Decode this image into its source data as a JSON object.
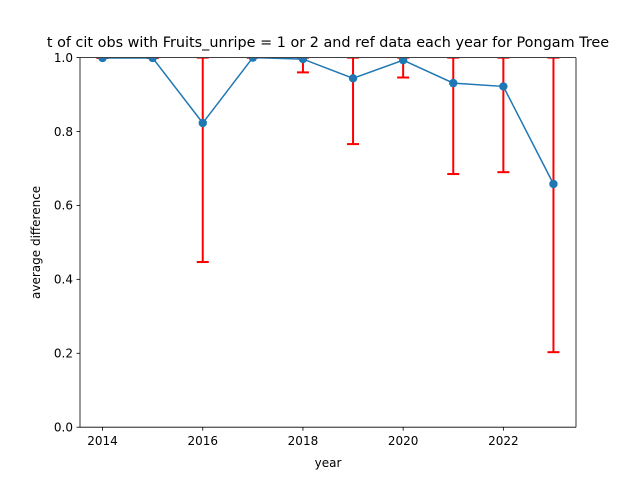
{
  "chart_data": {
    "type": "line",
    "title": "t of cit obs with Fruits_unripe = 1 or 2 and ref data each year for Pongam Tree",
    "xlabel": "year",
    "ylabel": "average difference",
    "xlim": [
      2013.55,
      2023.45
    ],
    "ylim": [
      0.0,
      1.0
    ],
    "xticks": [
      2014,
      2016,
      2018,
      2020,
      2022
    ],
    "xtick_labels": [
      "2014",
      "2016",
      "2018",
      "2020",
      "2022"
    ],
    "yticks": [
      0.0,
      0.2,
      0.4,
      0.6,
      0.8,
      1.0
    ],
    "ytick_labels": [
      "0.0",
      "0.2",
      "0.4",
      "0.6",
      "0.8",
      "1.0"
    ],
    "grid": false,
    "legend": "none",
    "series": [
      {
        "x": [
          2014,
          2015,
          2016,
          2017,
          2018,
          2019,
          2020,
          2021,
          2022,
          2023
        ],
        "y": [
          0.999,
          0.999,
          0.823,
          1.0,
          0.996,
          0.944,
          0.993,
          0.931,
          0.922,
          0.658
        ],
        "err_lower": [
          0.999,
          0.999,
          0.447,
          1.0,
          0.96,
          0.766,
          0.946,
          0.685,
          0.69,
          0.203
        ],
        "err_upper": [
          1.0,
          1.0,
          1.0,
          1.0,
          1.0,
          1.0,
          1.0,
          1.0,
          1.0,
          1.0
        ],
        "line_color": "#1f77b4",
        "error_color": "#ff0000"
      }
    ]
  }
}
